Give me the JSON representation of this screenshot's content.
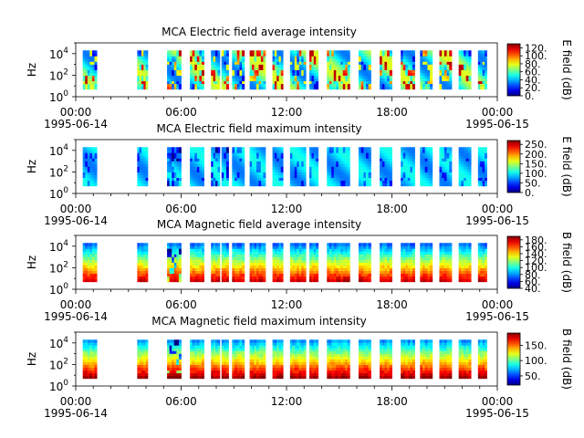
{
  "chart_data": [
    {
      "type": "heatmap",
      "title": "MCA  Electric field average intensity",
      "ylabel": "Hz",
      "yscale": "log",
      "ylim": [
        1,
        100000
      ],
      "y_ticks": [
        "10^0",
        "10^2",
        "10^4"
      ],
      "x_start": "1995-06-14 00:00",
      "x_end": "1995-06-15 00:00",
      "x_tick_labels": [
        "00:00",
        "06:00",
        "12:00",
        "18:00",
        "00:00"
      ],
      "x_date_labels": [
        "1995-06-14",
        "1995-06-15"
      ],
      "colorbar_label": "E field (dB)",
      "colorbar_range": [
        0,
        130
      ],
      "colorbar_ticks": [
        "0.",
        "20.",
        "40.",
        "60.",
        "80.",
        "100.",
        "120."
      ],
      "freq_range_hz": [
        5,
        20000
      ],
      "data_intervals_hours": [
        [
          0.4,
          1.2
        ],
        [
          3.5,
          4.1
        ],
        [
          5.2,
          6.0
        ],
        [
          6.5,
          7.3
        ],
        [
          7.7,
          8.2
        ],
        [
          8.3,
          8.7
        ],
        [
          8.9,
          9.6
        ],
        [
          9.9,
          10.8
        ],
        [
          11.2,
          11.8
        ],
        [
          12.2,
          13.1
        ],
        [
          13.3,
          13.8
        ],
        [
          14.3,
          15.6
        ],
        [
          16.1,
          16.8
        ],
        [
          17.3,
          18.0
        ],
        [
          18.5,
          19.3
        ],
        [
          19.6,
          20.3
        ],
        [
          20.7,
          21.4
        ],
        [
          21.8,
          22.5
        ],
        [
          22.9,
          23.4
        ]
      ],
      "colorscale": "jet (blue low to red high)"
    },
    {
      "type": "heatmap",
      "title": "MCA  Electric field maximum intensity",
      "ylabel": "Hz",
      "yscale": "log",
      "ylim": [
        1,
        100000
      ],
      "y_ticks": [
        "10^0",
        "10^2",
        "10^4"
      ],
      "x_start": "1995-06-14 00:00",
      "x_end": "1995-06-15 00:00",
      "x_tick_labels": [
        "00:00",
        "06:00",
        "12:00",
        "18:00",
        "00:00"
      ],
      "x_date_labels": [
        "1995-06-14",
        "1995-06-15"
      ],
      "colorbar_label": "E field (dB)",
      "colorbar_range": [
        0,
        270
      ],
      "colorbar_ticks": [
        "0.",
        "50.",
        "100.",
        "150.",
        "200.",
        "250."
      ],
      "freq_range_hz": [
        5,
        20000
      ],
      "data_intervals_hours": [
        [
          0.4,
          1.2
        ],
        [
          3.5,
          4.1
        ],
        [
          5.2,
          6.0
        ],
        [
          6.5,
          7.3
        ],
        [
          7.7,
          8.2
        ],
        [
          8.3,
          8.7
        ],
        [
          8.9,
          9.6
        ],
        [
          9.9,
          10.8
        ],
        [
          11.2,
          11.8
        ],
        [
          12.2,
          13.1
        ],
        [
          13.3,
          13.8
        ],
        [
          14.3,
          15.6
        ],
        [
          16.1,
          16.8
        ],
        [
          17.3,
          18.0
        ],
        [
          18.5,
          19.3
        ],
        [
          19.6,
          20.3
        ],
        [
          20.7,
          21.4
        ],
        [
          21.8,
          22.5
        ],
        [
          22.9,
          23.4
        ]
      ],
      "colorscale": "jet (blue low to red high)"
    },
    {
      "type": "heatmap",
      "title": "MCA  Magnetic field average intensity",
      "ylabel": "Hz",
      "yscale": "log",
      "ylim": [
        1,
        100000
      ],
      "y_ticks": [
        "10^0",
        "10^2",
        "10^4"
      ],
      "x_start": "1995-06-14 00:00",
      "x_end": "1995-06-15 00:00",
      "x_tick_labels": [
        "00:00",
        "06:00",
        "12:00",
        "18:00",
        "00:00"
      ],
      "x_date_labels": [
        "1995-06-14",
        "1995-06-15"
      ],
      "colorbar_label": "B field (dB)",
      "colorbar_range": [
        40,
        190
      ],
      "colorbar_ticks": [
        "40.",
        "60.",
        "80.",
        "100.",
        "120.",
        "140.",
        "160.",
        "180."
      ],
      "freq_range_hz": [
        5,
        20000
      ],
      "data_intervals_hours": [
        [
          0.4,
          1.2
        ],
        [
          3.5,
          4.1
        ],
        [
          5.2,
          6.0
        ],
        [
          6.5,
          7.3
        ],
        [
          7.7,
          8.2
        ],
        [
          8.3,
          8.7
        ],
        [
          8.9,
          9.6
        ],
        [
          9.9,
          10.8
        ],
        [
          11.2,
          11.8
        ],
        [
          12.2,
          13.1
        ],
        [
          13.3,
          13.8
        ],
        [
          14.3,
          15.6
        ],
        [
          16.1,
          16.8
        ],
        [
          17.3,
          18.0
        ],
        [
          18.5,
          19.3
        ],
        [
          19.6,
          20.3
        ],
        [
          20.7,
          21.4
        ],
        [
          21.8,
          22.5
        ],
        [
          22.9,
          23.4
        ]
      ],
      "colorscale": "jet (blue low to red high)"
    },
    {
      "type": "heatmap",
      "title": "MCA  Magnetic field maximum intensity",
      "ylabel": "Hz",
      "yscale": "log",
      "ylim": [
        1,
        100000
      ],
      "y_ticks": [
        "10^0",
        "10^2",
        "10^4"
      ],
      "x_start": "1995-06-14 00:00",
      "x_end": "1995-06-15 00:00",
      "x_tick_labels": [
        "00:00",
        "06:00",
        "12:00",
        "18:00",
        "00:00"
      ],
      "x_date_labels": [
        "1995-06-14",
        "1995-06-15"
      ],
      "colorbar_label": "B field (dB)",
      "colorbar_range": [
        20,
        190
      ],
      "colorbar_ticks": [
        "50.",
        "100.",
        "150."
      ],
      "freq_range_hz": [
        5,
        20000
      ],
      "data_intervals_hours": [
        [
          0.4,
          1.2
        ],
        [
          3.5,
          4.1
        ],
        [
          5.2,
          6.0
        ],
        [
          6.5,
          7.3
        ],
        [
          7.7,
          8.2
        ],
        [
          8.3,
          8.7
        ],
        [
          8.9,
          9.6
        ],
        [
          9.9,
          10.8
        ],
        [
          11.2,
          11.8
        ],
        [
          12.2,
          13.1
        ],
        [
          13.3,
          13.8
        ],
        [
          14.3,
          15.6
        ],
        [
          16.1,
          16.8
        ],
        [
          17.3,
          18.0
        ],
        [
          18.5,
          19.3
        ],
        [
          19.6,
          20.3
        ],
        [
          20.7,
          21.4
        ],
        [
          21.8,
          22.5
        ],
        [
          22.9,
          23.4
        ]
      ],
      "colorscale": "jet (blue low to red high)"
    }
  ]
}
